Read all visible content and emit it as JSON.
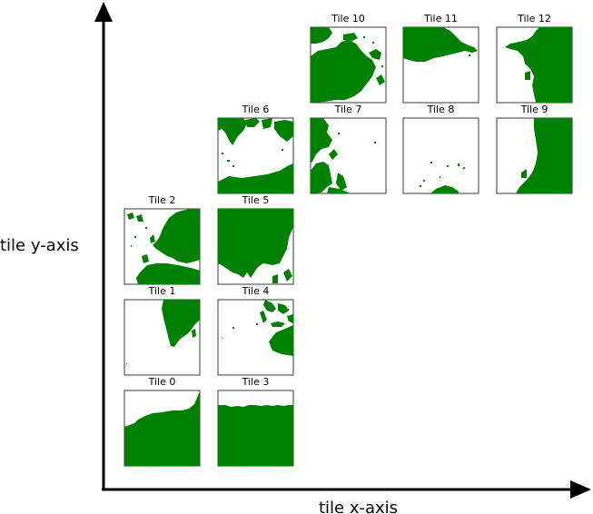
{
  "axes": {
    "x_label": "tile x-axis",
    "y_label": "tile y-axis"
  },
  "colors": {
    "land": "#008000",
    "water": "#ffffff",
    "frame": "#3a3a3a",
    "axis": "#000000"
  },
  "tiles": [
    {
      "title": "Tile 0"
    },
    {
      "title": "Tile 1"
    },
    {
      "title": "Tile 2"
    },
    {
      "title": "Tile 3"
    },
    {
      "title": "Tile 4"
    },
    {
      "title": "Tile 5"
    },
    {
      "title": "Tile 6"
    },
    {
      "title": "Tile 7"
    },
    {
      "title": "Tile 8"
    },
    {
      "title": "Tile 9"
    },
    {
      "title": "Tile 10"
    },
    {
      "title": "Tile 11"
    },
    {
      "title": "Tile 12"
    }
  ]
}
